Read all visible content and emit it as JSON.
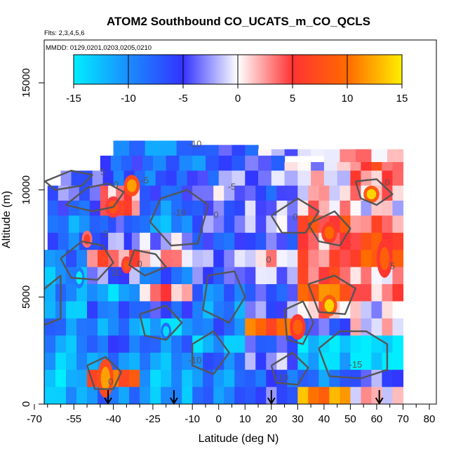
{
  "chart_data": {
    "type": "heatmap",
    "title": "ATOM2 Southbound CO_UCATS_m_CO_QCLS",
    "notes": [
      "Flts: 2,3,4,5,6",
      "MMDD: 0129,0201,0203,0205,0210"
    ],
    "xlabel": "Latitude (deg N)",
    "ylabel": "Altitude (m)",
    "xlim": [
      -70,
      80
    ],
    "ylim": [
      0,
      17000
    ],
    "x_ticks": [
      -70,
      -55,
      -40,
      -25,
      -10,
      0,
      10,
      20,
      30,
      40,
      50,
      60,
      70,
      80
    ],
    "x_tick_labels": [
      "-70",
      "-55",
      "-40",
      "-25",
      "-10",
      "0",
      "10",
      "20",
      "30",
      "40",
      "50",
      "60",
      "70",
      "80"
    ],
    "x_minor_ticks": [
      -65,
      -60,
      -50,
      -45,
      -35,
      -30,
      -20,
      -15,
      -5,
      5,
      15,
      25,
      35,
      45,
      55,
      65,
      75
    ],
    "y_ticks": [
      0,
      5000,
      10000,
      15000
    ],
    "y_tick_labels": [
      "0",
      "5000",
      "10000",
      "15000"
    ],
    "colorbar": {
      "min": -15,
      "max": 15,
      "ticks": [
        -15,
        -10,
        -5,
        0,
        5,
        10,
        15
      ],
      "tick_labels": [
        "-15",
        "-10",
        "-5",
        "0",
        "5",
        "10",
        "15"
      ],
      "colors": [
        {
          "v": -15,
          "c": "#00eeff"
        },
        {
          "v": -10,
          "c": "#1a8cff"
        },
        {
          "v": -5,
          "c": "#3333ff"
        },
        {
          "v": 0,
          "c": "#ffffff"
        },
        {
          "v": 5,
          "c": "#ff3333"
        },
        {
          "v": 10,
          "c": "#ff6a00"
        },
        {
          "v": 15,
          "c": "#ffee00"
        }
      ]
    },
    "profile_markers_lat": [
      -42,
      -17,
      20,
      61
    ],
    "contour_labels": [
      {
        "text": "-10",
        "lat": -9,
        "alt": 12000
      },
      {
        "text": "5",
        "lat": -44,
        "alt": 10700
      },
      {
        "text": "-5",
        "lat": -28,
        "alt": 10300
      },
      {
        "text": "-5",
        "lat": 5,
        "alt": 10000
      },
      {
        "text": "0",
        "lat": -39,
        "alt": 10100
      },
      {
        "text": "-10",
        "lat": -15,
        "alt": 8800
      },
      {
        "text": "0",
        "lat": -1,
        "alt": 8700
      },
      {
        "text": "0",
        "lat": 29,
        "alt": 8600
      },
      {
        "text": "0",
        "lat": 64,
        "alt": 10200
      },
      {
        "text": "5",
        "lat": -43,
        "alt": 7800
      },
      {
        "text": "10",
        "lat": -39,
        "alt": 6000
      },
      {
        "text": "0",
        "lat": -30,
        "alt": 6400
      },
      {
        "text": "0",
        "lat": 19,
        "alt": 6600
      },
      {
        "text": "5",
        "lat": 66,
        "alt": 6300
      },
      {
        "text": "-10",
        "lat": -9,
        "alt": 1900
      },
      {
        "text": "-15",
        "lat": 52,
        "alt": 1700
      },
      {
        "text": "-10",
        "lat": 24,
        "alt": 1100
      },
      {
        "text": "0",
        "lat": -41,
        "alt": 900
      }
    ],
    "cells": [
      [
        -40,
        -10,
        11600,
        12300,
        -10
      ],
      [
        -10,
        15,
        11600,
        12100,
        -6
      ],
      [
        15,
        40,
        11600,
        11900,
        -2
      ],
      [
        40,
        70,
        11200,
        11900,
        2
      ],
      [
        -45,
        -25,
        10900,
        11600,
        -7
      ],
      [
        -25,
        0,
        10900,
        11600,
        -9
      ],
      [
        0,
        25,
        10900,
        11600,
        -5
      ],
      [
        25,
        50,
        10900,
        11300,
        -1
      ],
      [
        50,
        70,
        10900,
        11300,
        5
      ],
      [
        -60,
        -40,
        10200,
        10900,
        -5
      ],
      [
        -40,
        -20,
        10200,
        10900,
        -8
      ],
      [
        -20,
        0,
        10200,
        10900,
        -6
      ],
      [
        0,
        25,
        10200,
        10900,
        -3
      ],
      [
        25,
        50,
        10200,
        10900,
        0
      ],
      [
        50,
        70,
        10200,
        10900,
        3
      ],
      [
        -65,
        -45,
        9500,
        10200,
        -4
      ],
      [
        -45,
        -30,
        9500,
        10200,
        3
      ],
      [
        -30,
        -10,
        9500,
        10200,
        -7
      ],
      [
        -10,
        10,
        9500,
        10200,
        -2
      ],
      [
        10,
        30,
        9500,
        10200,
        -6
      ],
      [
        30,
        50,
        9500,
        10200,
        1
      ],
      [
        50,
        70,
        9500,
        10200,
        2
      ],
      [
        -65,
        -45,
        8800,
        9500,
        -7
      ],
      [
        -45,
        -30,
        8800,
        9500,
        5
      ],
      [
        -30,
        -10,
        8800,
        9500,
        -9
      ],
      [
        -10,
        10,
        8800,
        9500,
        -5
      ],
      [
        10,
        30,
        8800,
        9500,
        -3
      ],
      [
        30,
        50,
        8800,
        9500,
        2
      ],
      [
        50,
        70,
        8800,
        9500,
        0
      ],
      [
        -65,
        -45,
        8000,
        8800,
        -10
      ],
      [
        -45,
        -30,
        8000,
        8800,
        -6
      ],
      [
        -30,
        -10,
        8000,
        8800,
        -11
      ],
      [
        -10,
        10,
        8000,
        8800,
        -4
      ],
      [
        10,
        30,
        8000,
        8800,
        -2
      ],
      [
        30,
        50,
        8000,
        8800,
        6
      ],
      [
        50,
        70,
        8000,
        8800,
        4
      ],
      [
        -65,
        -45,
        7200,
        8000,
        -8
      ],
      [
        -45,
        -30,
        7200,
        8000,
        -3
      ],
      [
        -30,
        -10,
        7200,
        8000,
        -2
      ],
      [
        -10,
        10,
        7200,
        8000,
        -7
      ],
      [
        10,
        30,
        7200,
        8000,
        -5
      ],
      [
        30,
        50,
        7200,
        8000,
        3
      ],
      [
        50,
        70,
        7200,
        8000,
        7
      ],
      [
        -70,
        -50,
        6400,
        7200,
        -9
      ],
      [
        -50,
        -30,
        6400,
        7200,
        4
      ],
      [
        -30,
        -10,
        6400,
        7200,
        2
      ],
      [
        -10,
        10,
        6400,
        7200,
        -3
      ],
      [
        10,
        30,
        6400,
        7200,
        1
      ],
      [
        30,
        50,
        6400,
        7200,
        4
      ],
      [
        50,
        70,
        6400,
        7200,
        8
      ],
      [
        -70,
        -50,
        5600,
        6400,
        -11
      ],
      [
        -50,
        -30,
        5600,
        6400,
        -4
      ],
      [
        -30,
        -10,
        5600,
        6400,
        -8
      ],
      [
        -10,
        10,
        5600,
        6400,
        -5
      ],
      [
        10,
        30,
        5600,
        6400,
        -2
      ],
      [
        30,
        50,
        5600,
        6400,
        5
      ],
      [
        50,
        70,
        5600,
        6400,
        1
      ],
      [
        -70,
        -50,
        4800,
        5600,
        -10
      ],
      [
        -50,
        -30,
        4800,
        5600,
        -12
      ],
      [
        -30,
        -10,
        4800,
        5600,
        3
      ],
      [
        -10,
        10,
        4800,
        5600,
        -9
      ],
      [
        10,
        30,
        4800,
        5600,
        -6
      ],
      [
        30,
        50,
        4800,
        5600,
        10
      ],
      [
        50,
        70,
        4800,
        5600,
        3
      ],
      [
        -70,
        -50,
        4000,
        4800,
        -12
      ],
      [
        -50,
        -30,
        4000,
        4800,
        -8
      ],
      [
        -30,
        -10,
        4000,
        4800,
        -6
      ],
      [
        -10,
        10,
        4000,
        4800,
        -10
      ],
      [
        10,
        30,
        4000,
        4800,
        -4
      ],
      [
        30,
        50,
        4000,
        4800,
        2
      ],
      [
        50,
        70,
        4000,
        4800,
        -1
      ],
      [
        -70,
        -50,
        3200,
        4000,
        -9
      ],
      [
        -50,
        -30,
        3200,
        4000,
        -10
      ],
      [
        -30,
        -10,
        3200,
        4000,
        -13
      ],
      [
        -10,
        10,
        3200,
        4000,
        -8
      ],
      [
        10,
        30,
        3200,
        4000,
        9
      ],
      [
        30,
        50,
        3200,
        4000,
        -5
      ],
      [
        50,
        70,
        3200,
        4000,
        0
      ],
      [
        -70,
        -50,
        2400,
        3200,
        -11
      ],
      [
        -50,
        -30,
        2400,
        3200,
        -7
      ],
      [
        -30,
        -10,
        2400,
        3200,
        -9
      ],
      [
        -10,
        10,
        2400,
        3200,
        -12
      ],
      [
        10,
        30,
        2400,
        3200,
        -6
      ],
      [
        30,
        50,
        2400,
        3200,
        -14
      ],
      [
        50,
        70,
        2400,
        3200,
        -15
      ],
      [
        -70,
        -50,
        1600,
        2400,
        -12
      ],
      [
        -50,
        -30,
        1600,
        2400,
        -10
      ],
      [
        -30,
        -10,
        1600,
        2400,
        -11
      ],
      [
        -10,
        10,
        1600,
        2400,
        -8
      ],
      [
        10,
        30,
        1600,
        2400,
        -3
      ],
      [
        30,
        50,
        1600,
        2400,
        -13
      ],
      [
        50,
        70,
        1600,
        2400,
        -15
      ],
      [
        -70,
        -50,
        800,
        1600,
        -13
      ],
      [
        -50,
        -30,
        800,
        1600,
        9
      ],
      [
        -30,
        -10,
        800,
        1600,
        -12
      ],
      [
        -10,
        10,
        800,
        1600,
        -10
      ],
      [
        10,
        30,
        800,
        1600,
        -7
      ],
      [
        30,
        50,
        800,
        1600,
        -9
      ],
      [
        50,
        70,
        800,
        1600,
        -4
      ],
      [
        -70,
        -50,
        0,
        800,
        -12
      ],
      [
        -50,
        -30,
        0,
        800,
        -9
      ],
      [
        -30,
        -10,
        0,
        800,
        -11
      ],
      [
        -10,
        10,
        0,
        800,
        -9
      ],
      [
        10,
        30,
        0,
        800,
        -5
      ],
      [
        30,
        50,
        0,
        800,
        11
      ],
      [
        50,
        70,
        0,
        800,
        1
      ]
    ],
    "hotspots": [
      [
        -43,
        1200,
        3,
        900,
        12
      ],
      [
        -33,
        10200,
        3,
        500,
        12
      ],
      [
        58,
        9800,
        3,
        400,
        14
      ],
      [
        42,
        8000,
        3,
        500,
        10
      ],
      [
        -35,
        6500,
        2,
        400,
        8
      ],
      [
        -50,
        7700,
        2,
        400,
        6
      ],
      [
        42,
        4600,
        3,
        500,
        14
      ],
      [
        30,
        3600,
        3,
        600,
        9
      ],
      [
        -40,
        9200,
        3,
        500,
        8
      ],
      [
        63,
        6800,
        3,
        900,
        9
      ],
      [
        -53,
        5900,
        2,
        500,
        -15
      ],
      [
        -20,
        3400,
        2,
        400,
        -14
      ]
    ],
    "contours": [
      [
        [
          -58,
          9300
        ],
        [
          -50,
          10100
        ],
        [
          -42,
          10300
        ],
        [
          -36,
          9900
        ],
        [
          -40,
          9200
        ],
        [
          -48,
          9000
        ],
        [
          -58,
          9300
        ]
      ],
      [
        [
          -22,
          9600
        ],
        [
          -12,
          10000
        ],
        [
          -4,
          9300
        ],
        [
          -8,
          7500
        ],
        [
          -18,
          7400
        ],
        [
          -26,
          8500
        ],
        [
          -22,
          9600
        ]
      ],
      [
        [
          -60,
          6800
        ],
        [
          -52,
          7600
        ],
        [
          -44,
          7400
        ],
        [
          -40,
          6600
        ],
        [
          -46,
          5800
        ],
        [
          -56,
          5900
        ],
        [
          -60,
          6800
        ]
      ],
      [
        [
          -32,
          7200
        ],
        [
          -24,
          7000
        ],
        [
          -20,
          6400
        ],
        [
          -28,
          6000
        ],
        [
          -34,
          6500
        ],
        [
          -32,
          7200
        ]
      ],
      [
        [
          -50,
          1800
        ],
        [
          -43,
          2200
        ],
        [
          -37,
          1500
        ],
        [
          -40,
          700
        ],
        [
          -47,
          700
        ],
        [
          -50,
          1800
        ]
      ],
      [
        [
          -30,
          4200
        ],
        [
          -20,
          4600
        ],
        [
          -14,
          3800
        ],
        [
          -20,
          3000
        ],
        [
          -28,
          3200
        ],
        [
          -30,
          4200
        ]
      ],
      [
        [
          -4,
          6000
        ],
        [
          6,
          6200
        ],
        [
          10,
          5000
        ],
        [
          4,
          3800
        ],
        [
          -6,
          4400
        ],
        [
          -4,
          6000
        ]
      ],
      [
        [
          20,
          8800
        ],
        [
          30,
          9600
        ],
        [
          38,
          9000
        ],
        [
          33,
          8000
        ],
        [
          24,
          8000
        ],
        [
          20,
          8800
        ]
      ],
      [
        [
          34,
          8400
        ],
        [
          44,
          9000
        ],
        [
          50,
          8200
        ],
        [
          46,
          7400
        ],
        [
          38,
          7600
        ],
        [
          34,
          8400
        ]
      ],
      [
        [
          52,
          10400
        ],
        [
          60,
          10500
        ],
        [
          66,
          9800
        ],
        [
          60,
          9300
        ],
        [
          54,
          9600
        ],
        [
          52,
          10400
        ]
      ],
      [
        [
          34,
          5600
        ],
        [
          44,
          6000
        ],
        [
          52,
          5400
        ],
        [
          48,
          4200
        ],
        [
          38,
          4300
        ],
        [
          34,
          5600
        ]
      ],
      [
        [
          25,
          4400
        ],
        [
          32,
          4800
        ],
        [
          36,
          3800
        ],
        [
          32,
          2800
        ],
        [
          26,
          3000
        ],
        [
          25,
          4400
        ]
      ],
      [
        [
          38,
          2600
        ],
        [
          46,
          3400
        ],
        [
          56,
          3400
        ],
        [
          64,
          2800
        ],
        [
          64,
          1600
        ],
        [
          54,
          1200
        ],
        [
          42,
          1300
        ],
        [
          38,
          2600
        ]
      ],
      [
        [
          -68,
          5200
        ],
        [
          -60,
          6000
        ],
        [
          -60,
          4000
        ],
        [
          -68,
          3600
        ],
        [
          -68,
          5200
        ]
      ],
      [
        [
          -10,
          2800
        ],
        [
          -2,
          3400
        ],
        [
          4,
          2400
        ],
        [
          -2,
          1400
        ],
        [
          -10,
          1800
        ],
        [
          -10,
          2800
        ]
      ],
      [
        [
          20,
          1800
        ],
        [
          28,
          2400
        ],
        [
          34,
          1700
        ],
        [
          30,
          900
        ],
        [
          22,
          1000
        ],
        [
          20,
          1800
        ]
      ],
      [
        [
          -66,
          10400
        ],
        [
          -56,
          10900
        ],
        [
          -48,
          10700
        ],
        [
          -52,
          10200
        ],
        [
          -62,
          10000
        ],
        [
          -66,
          10400
        ]
      ]
    ]
  }
}
